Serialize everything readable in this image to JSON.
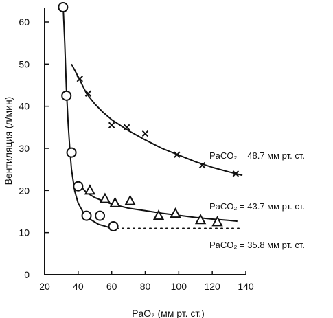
{
  "chart_data": {
    "type": "scatter",
    "xlabel": "PaO₂ (мм рт. ст.)",
    "ylabel": "Вентиляция (л/мин)",
    "xlim": [
      20,
      140
    ],
    "ylim": [
      0,
      65
    ],
    "xticks": [
      20,
      40,
      60,
      80,
      100,
      120,
      140
    ],
    "yticks": [
      0,
      10,
      20,
      30,
      40,
      50,
      60
    ],
    "grid": false,
    "series": [
      {
        "name": "PaCO₂ = 48.7 мм рт. ст.",
        "marker": "x",
        "points": [
          [
            41,
            46.5
          ],
          [
            46,
            43
          ],
          [
            60,
            35.5
          ],
          [
            69,
            35
          ],
          [
            80,
            33.5
          ],
          [
            99,
            28.5
          ],
          [
            114,
            26
          ],
          [
            134,
            24
          ]
        ],
        "curve": [
          [
            36,
            50
          ],
          [
            40,
            47
          ],
          [
            45,
            43
          ],
          [
            50,
            40.5
          ],
          [
            55,
            38.5
          ],
          [
            60,
            36.8
          ],
          [
            70,
            34.2
          ],
          [
            80,
            32
          ],
          [
            90,
            30
          ],
          [
            100,
            28.4
          ],
          [
            110,
            26.8
          ],
          [
            120,
            25.5
          ],
          [
            130,
            24.4
          ],
          [
            138,
            23.6
          ]
        ],
        "curve_style": "solid"
      },
      {
        "name": "PaCO₂ = 43.7 мм рт. ст.",
        "marker": "triangle",
        "points": [
          [
            47,
            20
          ],
          [
            56,
            18
          ],
          [
            62,
            17
          ],
          [
            71,
            17.5
          ],
          [
            88,
            14
          ],
          [
            98,
            14.5
          ],
          [
            113,
            13
          ],
          [
            123,
            12.5
          ]
        ],
        "curve": [
          [
            40,
            22
          ],
          [
            42,
            20.8
          ],
          [
            45,
            19.5
          ],
          [
            50,
            18.3
          ],
          [
            55,
            17.5
          ],
          [
            60,
            16.8
          ],
          [
            70,
            15.8
          ],
          [
            80,
            15.2
          ],
          [
            90,
            14.6
          ],
          [
            100,
            14.1
          ],
          [
            110,
            13.6
          ],
          [
            120,
            13.2
          ],
          [
            130,
            12.9
          ],
          [
            135,
            12.7
          ]
        ],
        "curve_style": "solid"
      },
      {
        "name": "PaCO₂ = 35.8 мм рт. ст.",
        "marker": "circle",
        "points": [
          [
            31,
            63.5
          ],
          [
            33,
            42.5
          ],
          [
            36,
            29
          ],
          [
            40,
            21
          ],
          [
            45,
            14
          ],
          [
            53,
            14
          ],
          [
            61,
            11.5
          ]
        ],
        "curve": [
          [
            31,
            64
          ],
          [
            32,
            55
          ],
          [
            33,
            44
          ],
          [
            34,
            36
          ],
          [
            35,
            30
          ],
          [
            36,
            25
          ],
          [
            38,
            19.8
          ],
          [
            40,
            17
          ],
          [
            43,
            14.8
          ],
          [
            47,
            13.2
          ],
          [
            52,
            12
          ],
          [
            58,
            11.3
          ],
          [
            63,
            11
          ]
        ],
        "curve_style": "solid",
        "extension": [
          [
            63,
            11
          ],
          [
            80,
            11
          ],
          [
            100,
            11
          ],
          [
            120,
            11
          ],
          [
            137,
            11
          ]
        ],
        "extension_style": "dotted"
      }
    ]
  }
}
